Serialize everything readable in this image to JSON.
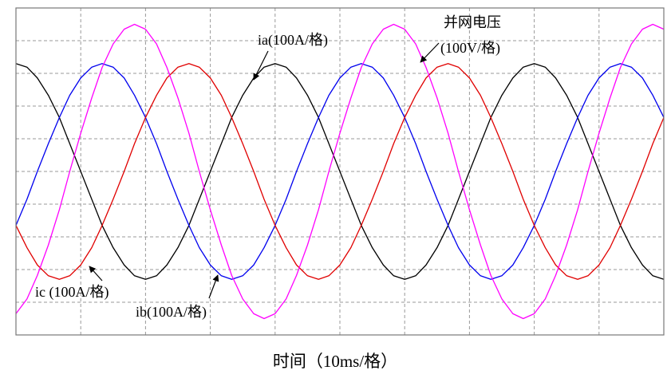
{
  "chart_data": {
    "type": "line",
    "x_label": "时间（10ms/格）",
    "x": [
      0,
      0.17,
      0.33,
      0.5,
      0.67,
      0.83,
      1,
      1.17,
      1.33,
      1.5,
      1.67,
      1.83,
      2,
      2.17,
      2.33,
      2.5,
      2.67,
      2.83,
      3,
      3.17,
      3.33,
      3.5,
      3.67,
      3.83,
      4,
      4.17,
      4.33,
      4.5,
      4.67,
      4.83,
      5,
      5.17,
      5.33,
      5.5,
      5.67,
      5.83,
      6,
      6.17,
      6.33,
      6.5,
      6.67,
      6.83,
      7,
      7.17,
      7.33,
      7.5,
      7.67,
      7.83,
      8,
      8.17,
      8.33,
      8.5,
      8.67,
      8.83,
      9,
      9.17,
      9.33,
      9.5,
      9.67,
      9.83,
      10
    ],
    "series": [
      {
        "name": "ia(100A/格)",
        "color": "#000000",
        "values": [
          3.3,
          3.19,
          2.86,
          2.33,
          1.65,
          0.85,
          0,
          -0.85,
          -1.65,
          -2.33,
          -2.86,
          -3.19,
          -3.3,
          -3.19,
          -2.86,
          -2.33,
          -1.65,
          -0.85,
          0,
          0.85,
          1.65,
          2.33,
          2.86,
          3.19,
          3.3,
          3.19,
          2.86,
          2.33,
          1.65,
          0.85,
          0,
          -0.85,
          -1.65,
          -2.33,
          -2.86,
          -3.19,
          -3.3,
          -3.19,
          -2.86,
          -2.33,
          -1.65,
          -0.85,
          0,
          0.85,
          1.65,
          2.33,
          2.86,
          3.19,
          3.3,
          3.19,
          2.86,
          2.33,
          1.65,
          0.85,
          0,
          -0.85,
          -1.65,
          -2.33,
          -2.86,
          -3.19,
          -3.3
        ]
      },
      {
        "name": "ib(100A/格)",
        "color": "#0000ee",
        "values": [
          -1.65,
          -0.85,
          0,
          0.85,
          1.65,
          2.33,
          2.86,
          3.19,
          3.3,
          3.19,
          2.86,
          2.33,
          1.65,
          0.85,
          0,
          -0.85,
          -1.65,
          -2.33,
          -2.86,
          -3.19,
          -3.3,
          -3.19,
          -2.86,
          -2.33,
          -1.65,
          -0.85,
          0,
          0.85,
          1.65,
          2.33,
          2.86,
          3.19,
          3.3,
          3.19,
          2.86,
          2.33,
          1.65,
          0.85,
          0,
          -0.85,
          -1.65,
          -2.33,
          -2.86,
          -3.19,
          -3.3,
          -3.19,
          -2.86,
          -2.33,
          -1.65,
          -0.85,
          0,
          0.85,
          1.65,
          2.33,
          2.86,
          3.19,
          3.3,
          3.19,
          2.86,
          2.33,
          1.65
        ]
      },
      {
        "name": "ic (100A/格)",
        "color": "#e00000",
        "values": [
          -1.65,
          -2.33,
          -2.86,
          -3.19,
          -3.3,
          -3.19,
          -2.86,
          -2.33,
          -1.65,
          -0.85,
          0,
          0.85,
          1.65,
          2.33,
          2.86,
          3.19,
          3.3,
          3.19,
          2.86,
          2.33,
          1.65,
          0.85,
          0,
          -0.85,
          -1.65,
          -2.33,
          -2.86,
          -3.19,
          -3.3,
          -3.19,
          -2.86,
          -2.33,
          -1.65,
          -0.85,
          0,
          0.85,
          1.65,
          2.33,
          2.86,
          3.19,
          3.3,
          3.19,
          2.86,
          2.33,
          1.65,
          0.85,
          0,
          -0.85,
          -1.65,
          -2.33,
          -2.86,
          -3.19,
          -3.3,
          -3.19,
          -2.86,
          -2.33,
          -1.65,
          -0.85,
          0,
          0.85,
          1.65
        ]
      },
      {
        "name": "并网电压",
        "color": "#ff00ff",
        "values": [
          -4.35,
          -3.9,
          -3.18,
          -2.25,
          -1.17,
          0,
          1.17,
          2.25,
          3.18,
          3.9,
          4.35,
          4.5,
          4.35,
          3.9,
          3.18,
          2.25,
          1.17,
          0,
          -1.17,
          -2.25,
          -3.18,
          -3.9,
          -4.35,
          -4.5,
          -4.35,
          -3.9,
          -3.18,
          -2.25,
          -1.17,
          0,
          1.17,
          2.25,
          3.18,
          3.9,
          4.35,
          4.5,
          4.35,
          3.9,
          3.18,
          2.25,
          1.17,
          0,
          -1.17,
          -2.25,
          -3.18,
          -3.9,
          -4.35,
          -4.5,
          -4.35,
          -3.9,
          -3.18,
          -2.25,
          -1.17,
          0,
          1.17,
          2.25,
          3.18,
          3.9,
          4.35,
          4.5,
          4.35
        ]
      }
    ],
    "annotations": [
      "(100V/格)"
    ],
    "xlim": [
      0,
      10
    ],
    "ylim": [
      -5,
      5
    ],
    "xticks": [
      0,
      1,
      2,
      3,
      4,
      5,
      6,
      7,
      8,
      9,
      10
    ],
    "yticks": [
      -5,
      -4,
      -3,
      -2,
      -1,
      0,
      1,
      2,
      3,
      4,
      5
    ],
    "grid": true
  }
}
